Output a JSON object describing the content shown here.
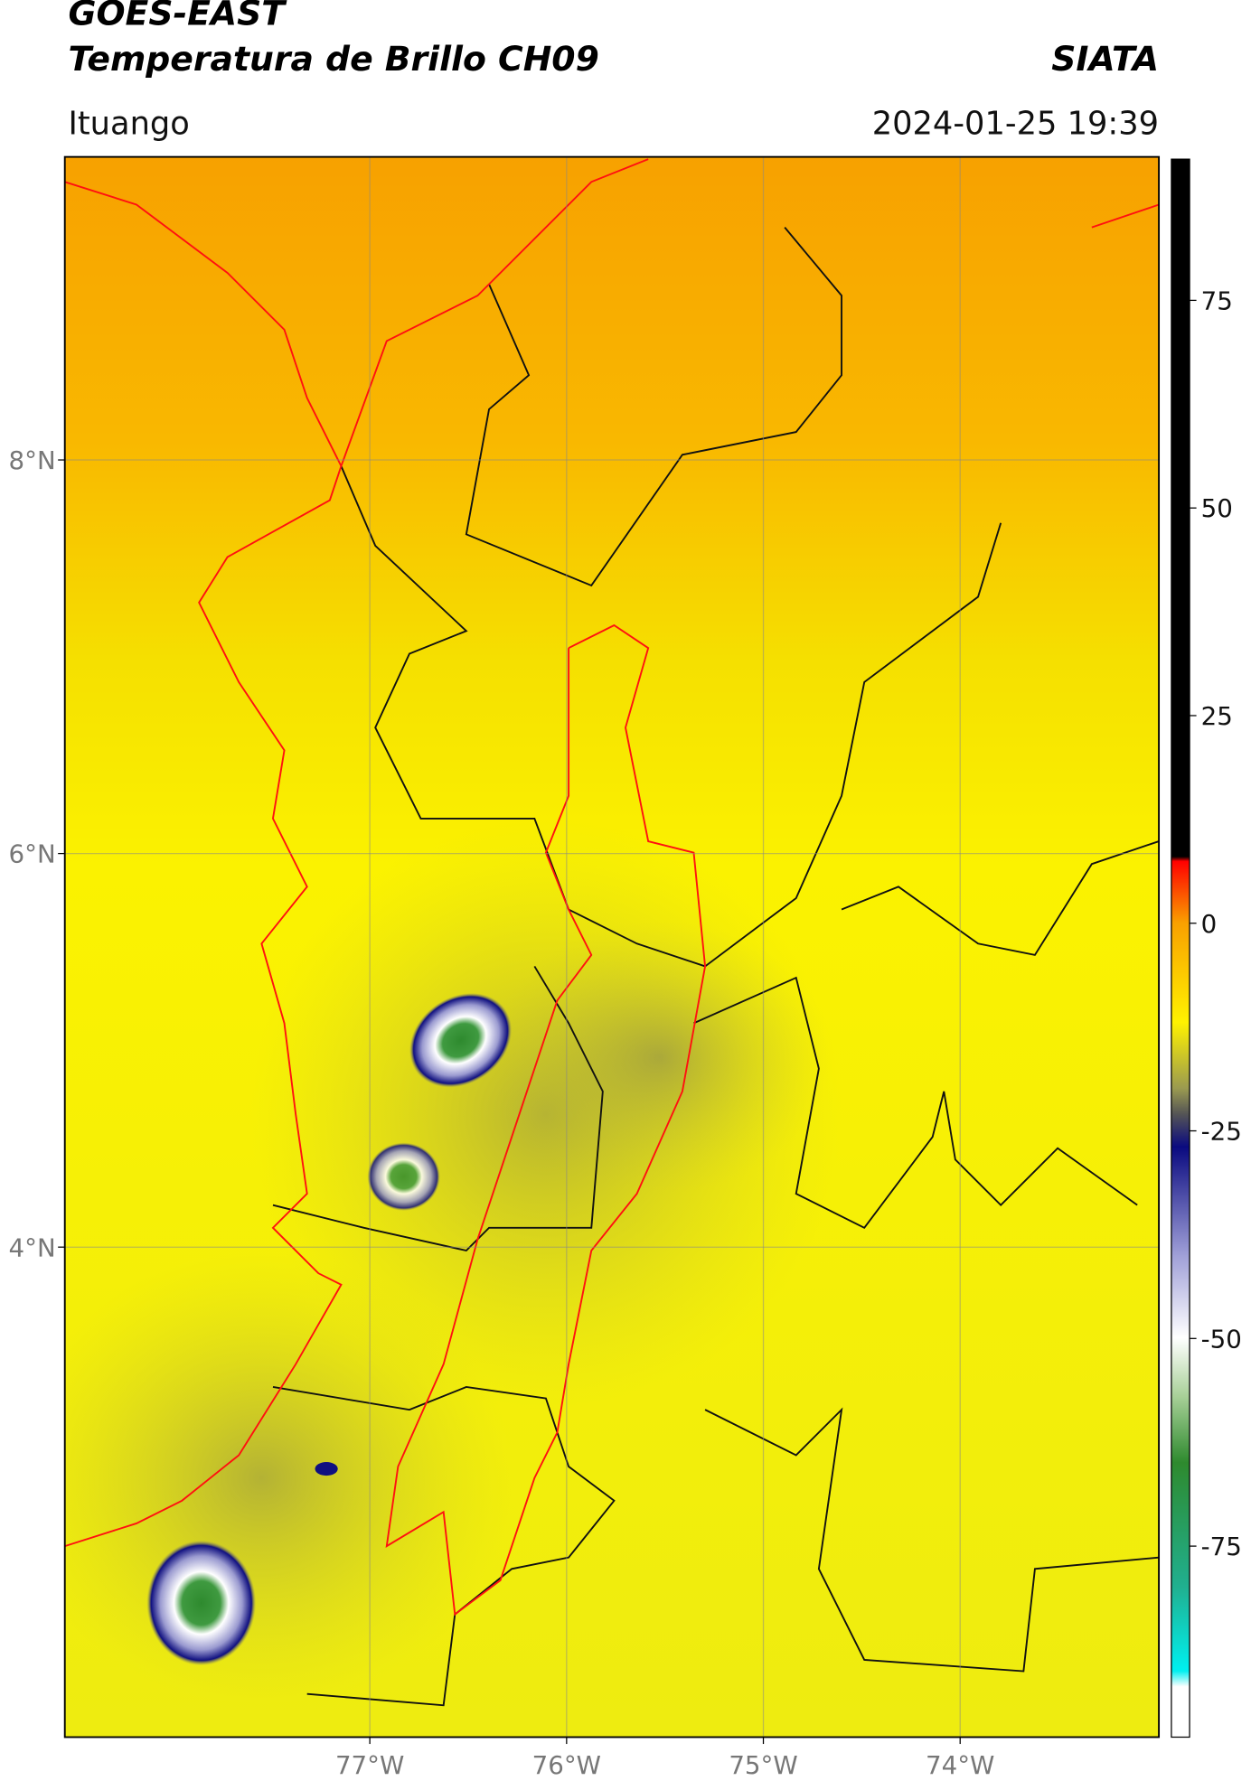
{
  "header": {
    "title_line1": "GOES-EAST",
    "title_line2": "Temperatura de Brillo CH09",
    "organization": "SIATA",
    "location": "Ituango",
    "datetime": "2024-01-25 19:39"
  },
  "map": {
    "xlim": [
      -78.55,
      -72.99
    ],
    "ylim": [
      1.51,
      9.54
    ],
    "lat_ticks": [
      {
        "value": 8,
        "label": "8°N"
      },
      {
        "value": 6,
        "label": "6°N"
      },
      {
        "value": 4,
        "label": "4°N"
      }
    ],
    "lon_ticks": [
      {
        "value": -77,
        "label": "77°W"
      },
      {
        "value": -76,
        "label": "76°W"
      },
      {
        "value": -75,
        "label": "75°W"
      },
      {
        "value": -74,
        "label": "74°W"
      }
    ],
    "grid": true
  },
  "colorbar": {
    "range": [
      -98,
      92
    ],
    "ticks": [
      75,
      50,
      25,
      0,
      -25,
      -50,
      -75
    ]
  }
}
